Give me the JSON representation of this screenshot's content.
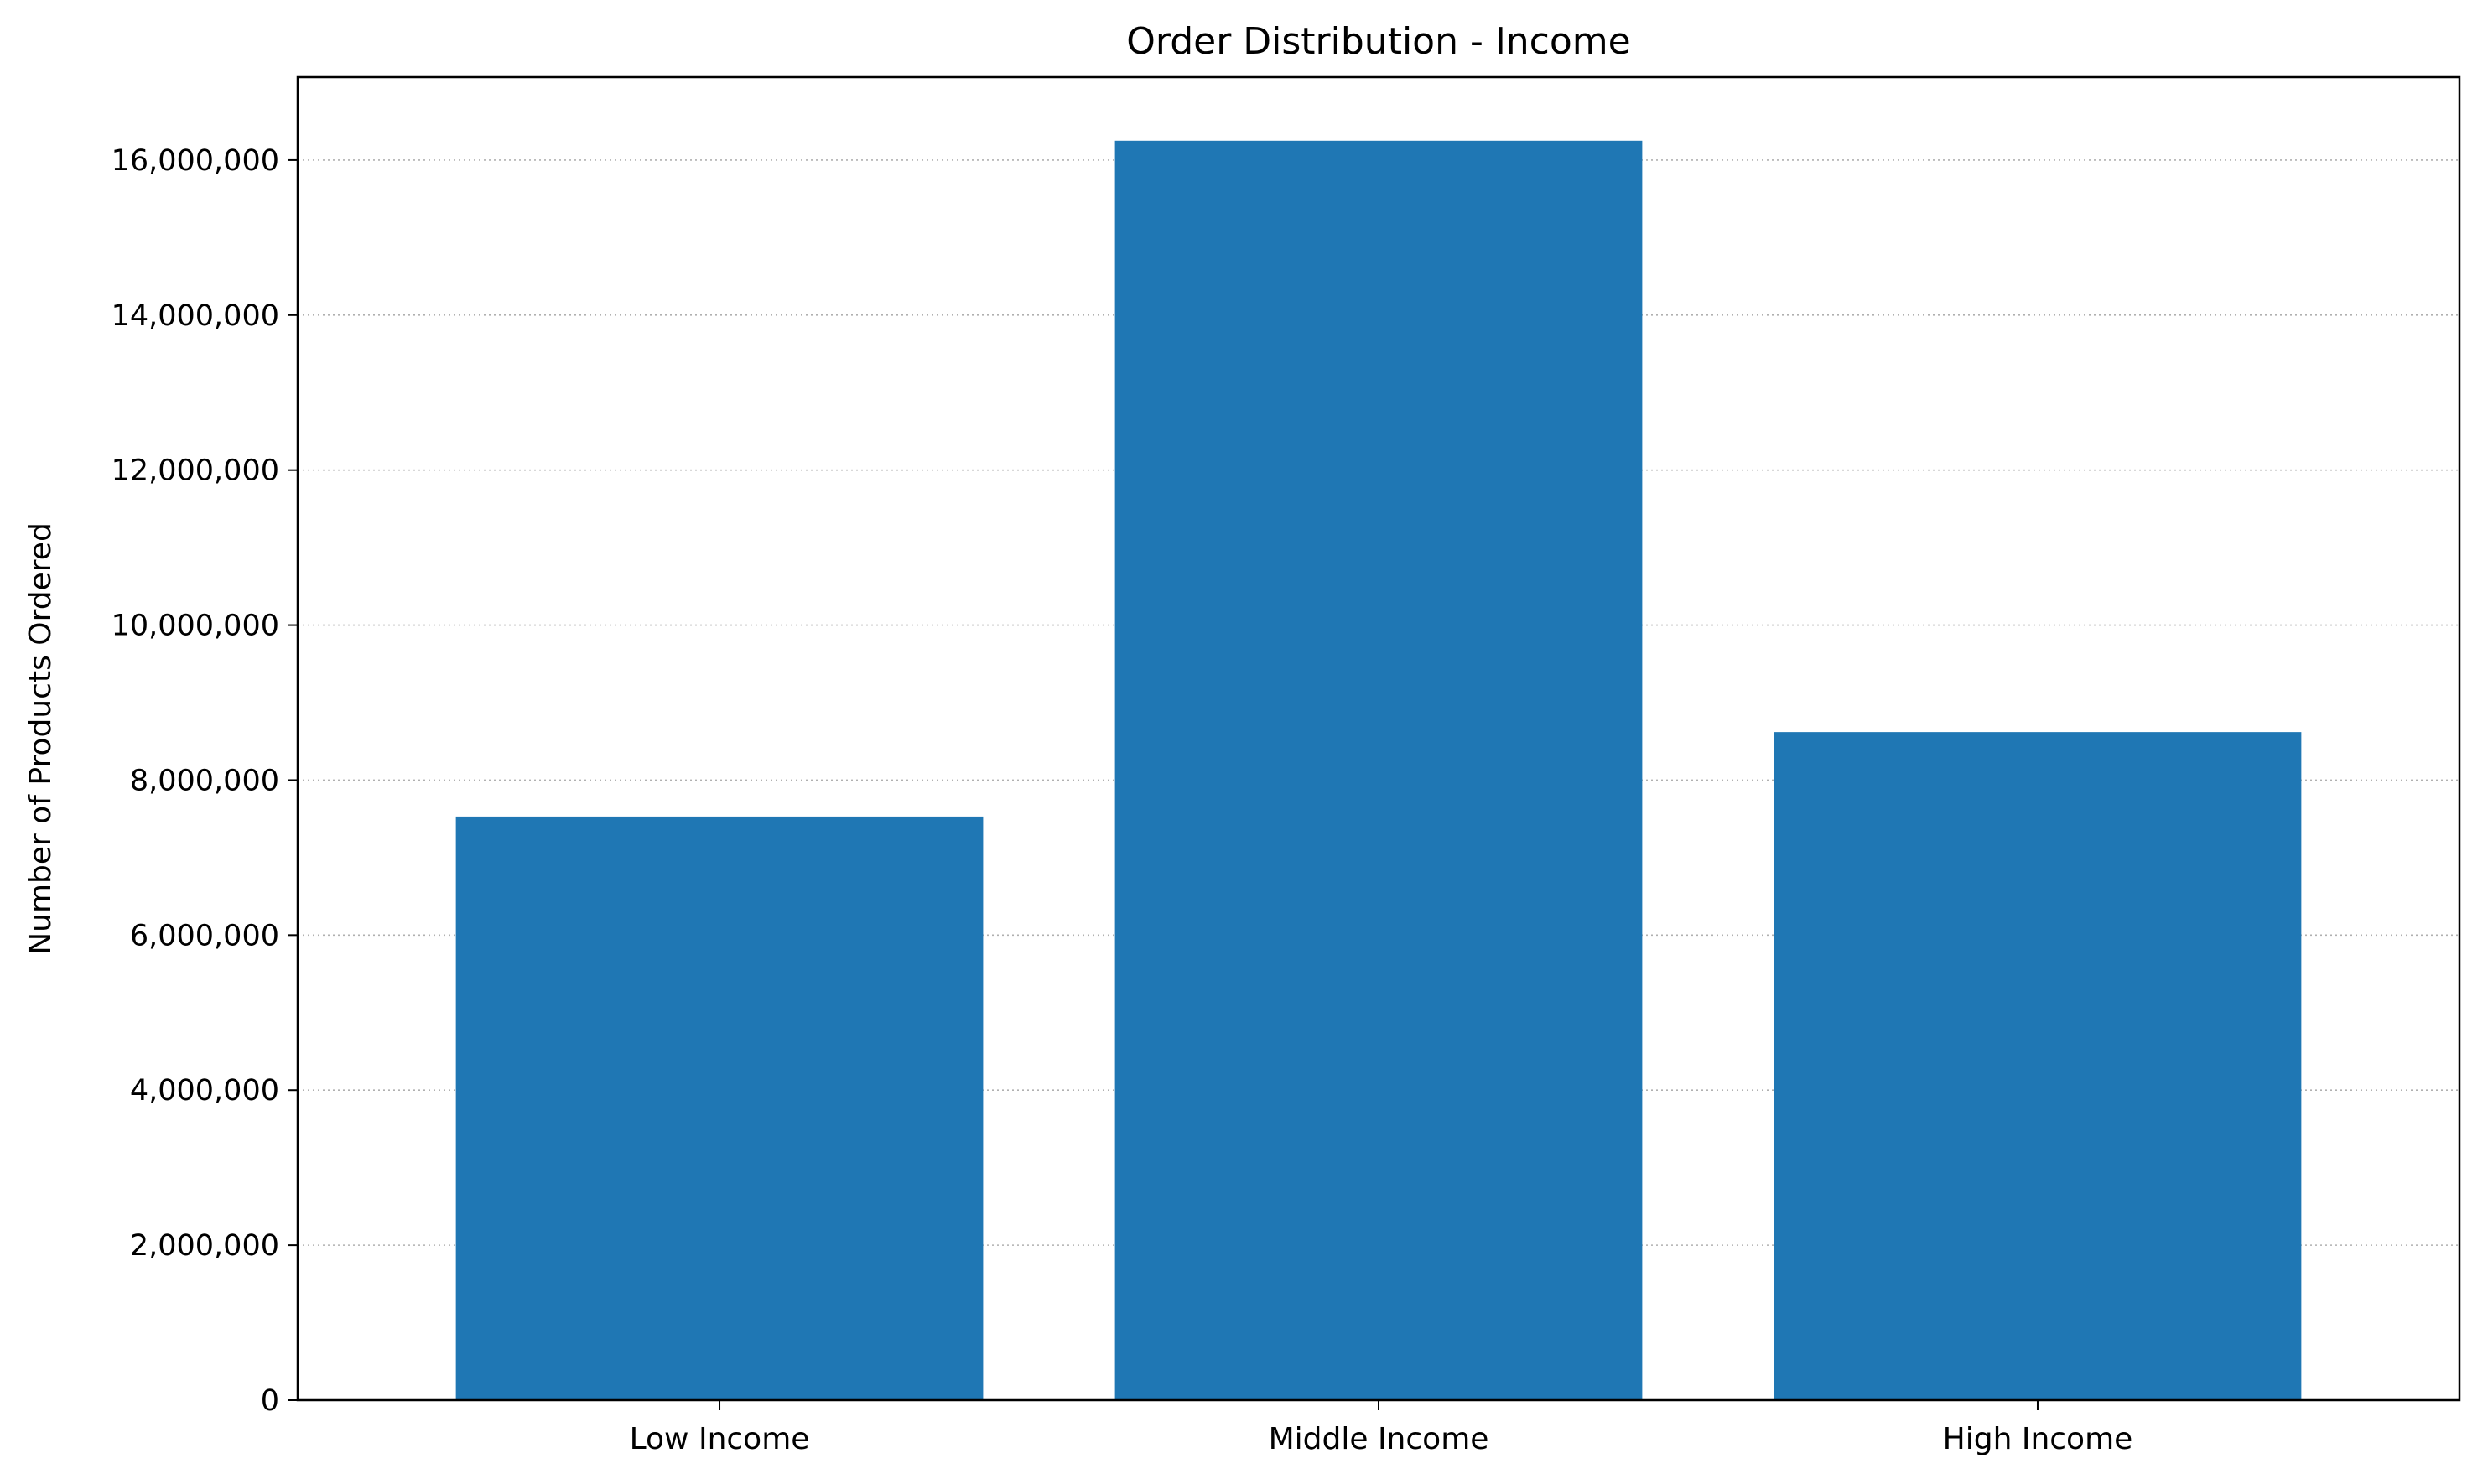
{
  "chart_data": {
    "type": "bar",
    "title": "Order Distribution - Income",
    "xlabel": "",
    "ylabel": "Number of Products Ordered",
    "categories": [
      "Low Income",
      "Middle Income",
      "High Income"
    ],
    "values": [
      7530000,
      16250000,
      8620000
    ],
    "ylim": [
      0,
      17070000
    ],
    "yticks": [
      0,
      2000000,
      4000000,
      6000000,
      8000000,
      10000000,
      12000000,
      14000000,
      16000000
    ],
    "ytick_labels": [
      "0",
      "2,000,000",
      "4,000,000",
      "6,000,000",
      "8,000,000",
      "10,000,000",
      "12,000,000",
      "14,000,000",
      "16,000,000"
    ],
    "grid": "y-dotted",
    "legend": "none",
    "bar_color": "#1f77b4",
    "grid_color": "#b0b0b0"
  }
}
